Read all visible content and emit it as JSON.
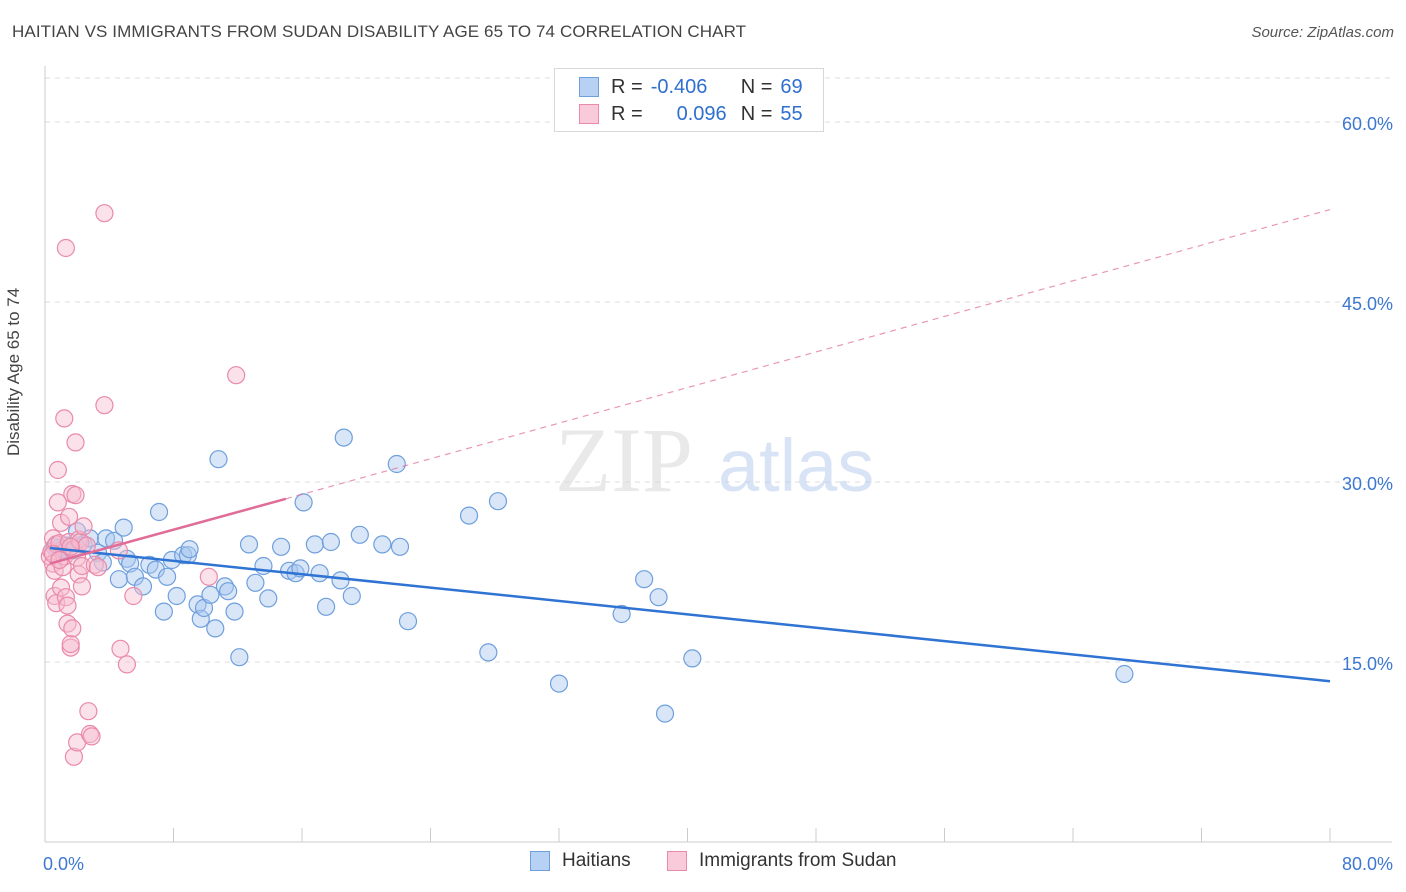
{
  "title": "HAITIAN VS IMMIGRANTS FROM SUDAN DISABILITY AGE 65 TO 74 CORRELATION CHART",
  "source": "Source: ZipAtlas.com",
  "watermark": {
    "zip": "ZIP",
    "atlas": "atlas"
  },
  "legend_top": {
    "rows": [
      {
        "r_label": "R =",
        "r_value": "-0.406",
        "n_label": "N =",
        "n_value": "69"
      },
      {
        "r_label": "R =",
        "r_value": "0.096",
        "n_label": "N =",
        "n_value": "55"
      }
    ]
  },
  "colors": {
    "blue_fill": "#a9c8f0",
    "blue_stroke": "#6f9fdc",
    "blue_line": "#2f73d3",
    "pink_fill": "#f7bcd0",
    "pink_stroke": "#e98aa9",
    "pink_line": "#e06c98",
    "tick_label": "#3c78d0",
    "grid": "#dddddd"
  },
  "chart_data": {
    "type": "scatter",
    "title": "HAITIAN VS IMMIGRANTS FROM SUDAN DISABILITY AGE 65 TO 74 CORRELATION CHART",
    "xlabel": "",
    "ylabel": "Disability Age 65 to 74",
    "xlim": [
      0,
      80
    ],
    "ylim": [
      0,
      64
    ],
    "x_tick_labels": [
      "0.0%",
      "80.0%"
    ],
    "y_ticks": [
      15,
      30,
      45,
      60
    ],
    "y_tick_labels": [
      "15.0%",
      "30.0%",
      "45.0%",
      "60.0%"
    ],
    "grid": true,
    "legend_position": "bottom",
    "series": [
      {
        "name": "Haitians",
        "color": "blue",
        "trend": {
          "x": [
            0.3,
            80
          ],
          "y": [
            24.5,
            13.4
          ],
          "dashed_beyond": null
        },
        "points": [
          [
            0.6,
            24.6
          ],
          [
            0.9,
            24.5
          ],
          [
            1.1,
            24.4
          ],
          [
            1.4,
            24.7
          ],
          [
            1.7,
            24.3
          ],
          [
            2.0,
            25.9
          ],
          [
            2.4,
            24.8
          ],
          [
            2.8,
            25.3
          ],
          [
            3.3,
            24.1
          ],
          [
            3.6,
            23.3
          ],
          [
            3.8,
            25.3
          ],
          [
            4.3,
            25.1
          ],
          [
            4.6,
            21.9
          ],
          [
            4.9,
            26.2
          ],
          [
            5.1,
            23.6
          ],
          [
            5.3,
            23.2
          ],
          [
            5.6,
            22.1
          ],
          [
            6.1,
            21.3
          ],
          [
            6.5,
            23.1
          ],
          [
            6.9,
            22.7
          ],
          [
            7.1,
            27.5
          ],
          [
            7.4,
            19.2
          ],
          [
            7.6,
            22.1
          ],
          [
            7.9,
            23.5
          ],
          [
            8.2,
            20.5
          ],
          [
            8.6,
            23.9
          ],
          [
            8.9,
            23.9
          ],
          [
            9.0,
            24.4
          ],
          [
            9.5,
            19.8
          ],
          [
            9.7,
            18.6
          ],
          [
            9.9,
            19.5
          ],
          [
            10.3,
            20.6
          ],
          [
            10.6,
            17.8
          ],
          [
            10.8,
            31.9
          ],
          [
            11.2,
            21.3
          ],
          [
            11.4,
            20.9
          ],
          [
            11.8,
            19.2
          ],
          [
            12.1,
            15.4
          ],
          [
            12.7,
            24.8
          ],
          [
            13.1,
            21.6
          ],
          [
            13.6,
            23.0
          ],
          [
            13.9,
            20.3
          ],
          [
            14.7,
            24.6
          ],
          [
            15.2,
            22.6
          ],
          [
            15.6,
            22.4
          ],
          [
            15.9,
            22.8
          ],
          [
            16.1,
            28.3
          ],
          [
            16.8,
            24.8
          ],
          [
            17.1,
            22.4
          ],
          [
            17.5,
            19.6
          ],
          [
            17.8,
            25.0
          ],
          [
            18.4,
            21.8
          ],
          [
            18.6,
            33.7
          ],
          [
            19.1,
            20.5
          ],
          [
            19.6,
            25.6
          ],
          [
            21.0,
            24.8
          ],
          [
            21.9,
            31.5
          ],
          [
            22.1,
            24.6
          ],
          [
            22.6,
            18.4
          ],
          [
            26.4,
            27.2
          ],
          [
            27.6,
            15.8
          ],
          [
            28.2,
            28.4
          ],
          [
            32.0,
            13.2
          ],
          [
            35.9,
            19.0
          ],
          [
            37.3,
            21.9
          ],
          [
            38.2,
            20.4
          ],
          [
            38.6,
            10.7
          ],
          [
            40.3,
            15.3
          ],
          [
            67.2,
            14.0
          ]
        ]
      },
      {
        "name": "Immigrants from Sudan",
        "color": "pink",
        "trend": {
          "x": [
            0.3,
            15.0
          ],
          "y": [
            23.2,
            28.6
          ],
          "dashed_to": [
            80,
            52.7
          ]
        },
        "points": [
          [
            0.3,
            23.8
          ],
          [
            0.4,
            24.2
          ],
          [
            0.5,
            25.3
          ],
          [
            0.5,
            23.2
          ],
          [
            0.6,
            22.6
          ],
          [
            0.6,
            20.5
          ],
          [
            0.7,
            24.8
          ],
          [
            0.7,
            19.9
          ],
          [
            0.8,
            28.3
          ],
          [
            0.8,
            31.0
          ],
          [
            0.9,
            24.9
          ],
          [
            1.0,
            26.6
          ],
          [
            1.0,
            21.2
          ],
          [
            1.1,
            22.9
          ],
          [
            1.2,
            23.8
          ],
          [
            1.2,
            35.3
          ],
          [
            1.3,
            49.5
          ],
          [
            1.3,
            20.4
          ],
          [
            1.4,
            19.7
          ],
          [
            1.4,
            18.2
          ],
          [
            1.5,
            25.0
          ],
          [
            1.5,
            27.1
          ],
          [
            1.6,
            16.2
          ],
          [
            1.6,
            16.5
          ],
          [
            1.7,
            29.0
          ],
          [
            1.7,
            17.8
          ],
          [
            1.8,
            24.4
          ],
          [
            1.8,
            7.1
          ],
          [
            1.9,
            28.9
          ],
          [
            1.9,
            33.3
          ],
          [
            2.0,
            23.7
          ],
          [
            2.0,
            8.3
          ],
          [
            2.1,
            25.2
          ],
          [
            2.1,
            22.3
          ],
          [
            2.2,
            25.0
          ],
          [
            2.3,
            23.0
          ],
          [
            2.3,
            21.3
          ],
          [
            2.4,
            26.3
          ],
          [
            2.6,
            24.7
          ],
          [
            2.7,
            10.9
          ],
          [
            2.8,
            9.0
          ],
          [
            2.9,
            8.8
          ],
          [
            3.1,
            23.1
          ],
          [
            3.3,
            22.9
          ],
          [
            3.7,
            36.4
          ],
          [
            3.7,
            52.4
          ],
          [
            4.6,
            24.3
          ],
          [
            4.7,
            16.1
          ],
          [
            5.1,
            14.8
          ],
          [
            5.5,
            20.5
          ],
          [
            10.2,
            22.1
          ],
          [
            11.9,
            38.9
          ],
          [
            0.5,
            24.0
          ],
          [
            0.9,
            23.5
          ],
          [
            1.6,
            24.6
          ]
        ]
      }
    ]
  },
  "legend_bottom": {
    "items": [
      {
        "label": "Haitians",
        "color": "blue"
      },
      {
        "label": "Immigrants from Sudan",
        "color": "pink"
      }
    ]
  }
}
